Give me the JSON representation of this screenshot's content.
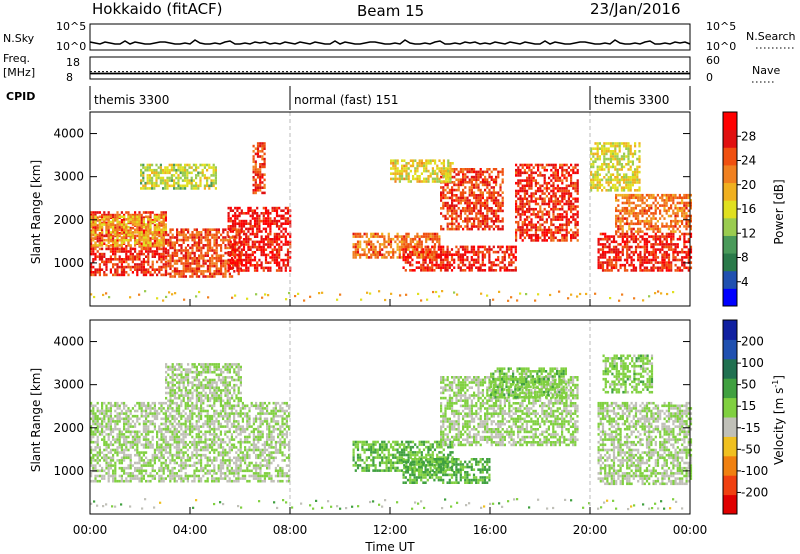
{
  "header": {
    "station": "Hokkaido (fitACF)",
    "beam": "Beam 15",
    "date": "23/Jan/2016"
  },
  "side_labels": {
    "nsky": "N.Sky",
    "freq": "Freq.",
    "freq_unit": "[MHz]",
    "cpid": "CPID",
    "nsearch": "N.Search",
    "nave": "Nave"
  },
  "nsky_ticks": {
    "top": "10^5",
    "bottom": "10^0"
  },
  "nsearch_ticks": {
    "top": "10^5",
    "bottom": "10^0"
  },
  "freq_ticks": {
    "top": "18",
    "bottom": "8"
  },
  "nave_ticks": {
    "top": "60",
    "bottom": "0"
  },
  "cpid_segments": [
    {
      "label": "themis 3300",
      "start": 0,
      "end": 8
    },
    {
      "label": "normal (fast) 151",
      "start": 8,
      "end": 20
    },
    {
      "label": "themis 3300",
      "start": 20,
      "end": 24
    }
  ],
  "x_axis": {
    "label": "Time UT",
    "ticks": [
      "00:00",
      "04:00",
      "08:00",
      "12:00",
      "16:00",
      "20:00",
      "00:00"
    ]
  },
  "y_axis": {
    "label": "Slant Range [km]",
    "ticks": [
      "1000",
      "2000",
      "3000",
      "4000"
    ]
  },
  "power_colorbar": {
    "label": "Power [dB]",
    "ticks": [
      "4",
      "8",
      "12",
      "16",
      "20",
      "24",
      "28"
    ],
    "colors": [
      "#0000ff",
      "#2050b0",
      "#2a7a4a",
      "#4a9a5a",
      "#9acc50",
      "#e0e020",
      "#f0b020",
      "#f08020",
      "#f05010",
      "#e01010",
      "#ff0000"
    ]
  },
  "velocity_colorbar": {
    "label": "Velocity [m s",
    "label_sup": "-1",
    "label_end": "]",
    "ticks": [
      "200",
      "100",
      "50",
      "15",
      "-15",
      "-50",
      "-100",
      "-200"
    ],
    "colors": [
      "#1020a0",
      "#2050b0",
      "#207050",
      "#40a040",
      "#80d040",
      "#c0c0b8",
      "#f0c020",
      "#f08010",
      "#f04010",
      "#e00000"
    ]
  },
  "chart_data": {
    "type": "heatmap",
    "panels": [
      {
        "name": "Power",
        "x_range": [
          0,
          24
        ],
        "y_range": [
          0,
          4500
        ],
        "scale": [
          0,
          30
        ],
        "note_units": "x in hours UT, y in km slant range, value in dB",
        "patches": [
          {
            "t0": 0.0,
            "t1": 3.0,
            "r0": 750,
            "r1": 2200,
            "v": 26
          },
          {
            "t0": 0.0,
            "t1": 3.0,
            "r0": 1400,
            "r1": 2100,
            "v": 18
          },
          {
            "t0": 3.0,
            "t1": 6.0,
            "r0": 700,
            "r1": 1800,
            "v": 24
          },
          {
            "t0": 5.5,
            "t1": 8.0,
            "r0": 800,
            "r1": 2300,
            "v": 28
          },
          {
            "t0": 6.5,
            "t1": 7.0,
            "r0": 2600,
            "r1": 3800,
            "v": 25
          },
          {
            "t0": 2.0,
            "t1": 5.0,
            "r0": 2700,
            "r1": 3300,
            "v": 14
          },
          {
            "t0": 10.5,
            "t1": 14.0,
            "r0": 1100,
            "r1": 1700,
            "v": 22
          },
          {
            "t0": 12.5,
            "t1": 17.0,
            "r0": 800,
            "r1": 1400,
            "v": 27
          },
          {
            "t0": 14.0,
            "t1": 16.5,
            "r0": 1800,
            "r1": 3200,
            "v": 25
          },
          {
            "t0": 17.0,
            "t1": 19.5,
            "r0": 1500,
            "r1": 3300,
            "v": 26
          },
          {
            "t0": 12.0,
            "t1": 14.5,
            "r0": 2900,
            "r1": 3400,
            "v": 16
          },
          {
            "t0": 20.3,
            "t1": 24.0,
            "r0": 800,
            "r1": 1700,
            "v": 27
          },
          {
            "t0": 21.0,
            "t1": 24.0,
            "r0": 1700,
            "r1": 2600,
            "v": 22
          },
          {
            "t0": 20.0,
            "t1": 22.0,
            "r0": 2700,
            "r1": 3800,
            "v": 15
          }
        ]
      },
      {
        "name": "Velocity",
        "x_range": [
          0,
          24
        ],
        "y_range": [
          0,
          4500
        ],
        "scale": [
          -200,
          200
        ],
        "note_units": "x in hours UT, y in km slant range, value in m/s",
        "patches": [
          {
            "t0": 0.0,
            "t1": 8.0,
            "r0": 750,
            "r1": 2600,
            "v": 0
          },
          {
            "t0": 3.0,
            "t1": 6.0,
            "r0": 2600,
            "r1": 3500,
            "v": 0
          },
          {
            "t0": 10.5,
            "t1": 14.5,
            "r0": 1000,
            "r1": 1700,
            "v": 40
          },
          {
            "t0": 12.5,
            "t1": 16.0,
            "r0": 700,
            "r1": 1300,
            "v": 50
          },
          {
            "t0": 14.0,
            "t1": 19.5,
            "r0": 1600,
            "r1": 3200,
            "v": 5
          },
          {
            "t0": 16.0,
            "t1": 19.0,
            "r0": 2700,
            "r1": 3400,
            "v": 25
          },
          {
            "t0": 20.3,
            "t1": 24.0,
            "r0": 700,
            "r1": 2600,
            "v": 0
          },
          {
            "t0": 20.5,
            "t1": 22.5,
            "r0": 2800,
            "r1": 3700,
            "v": 20
          }
        ]
      }
    ],
    "nsky_levels": [
      1,
      2,
      1,
      3,
      2,
      1,
      1,
      2,
      1,
      3,
      2,
      1
    ],
    "freq_mhz": 10.5,
    "nave": 20,
    "x_ticks": [
      "00:00",
      "04:00",
      "08:00",
      "12:00",
      "16:00",
      "20:00",
      "00:00"
    ],
    "xlabel": "Time UT",
    "ylabel": "Slant Range [km]",
    "y_ticks": [
      1000,
      2000,
      3000,
      4000
    ]
  }
}
